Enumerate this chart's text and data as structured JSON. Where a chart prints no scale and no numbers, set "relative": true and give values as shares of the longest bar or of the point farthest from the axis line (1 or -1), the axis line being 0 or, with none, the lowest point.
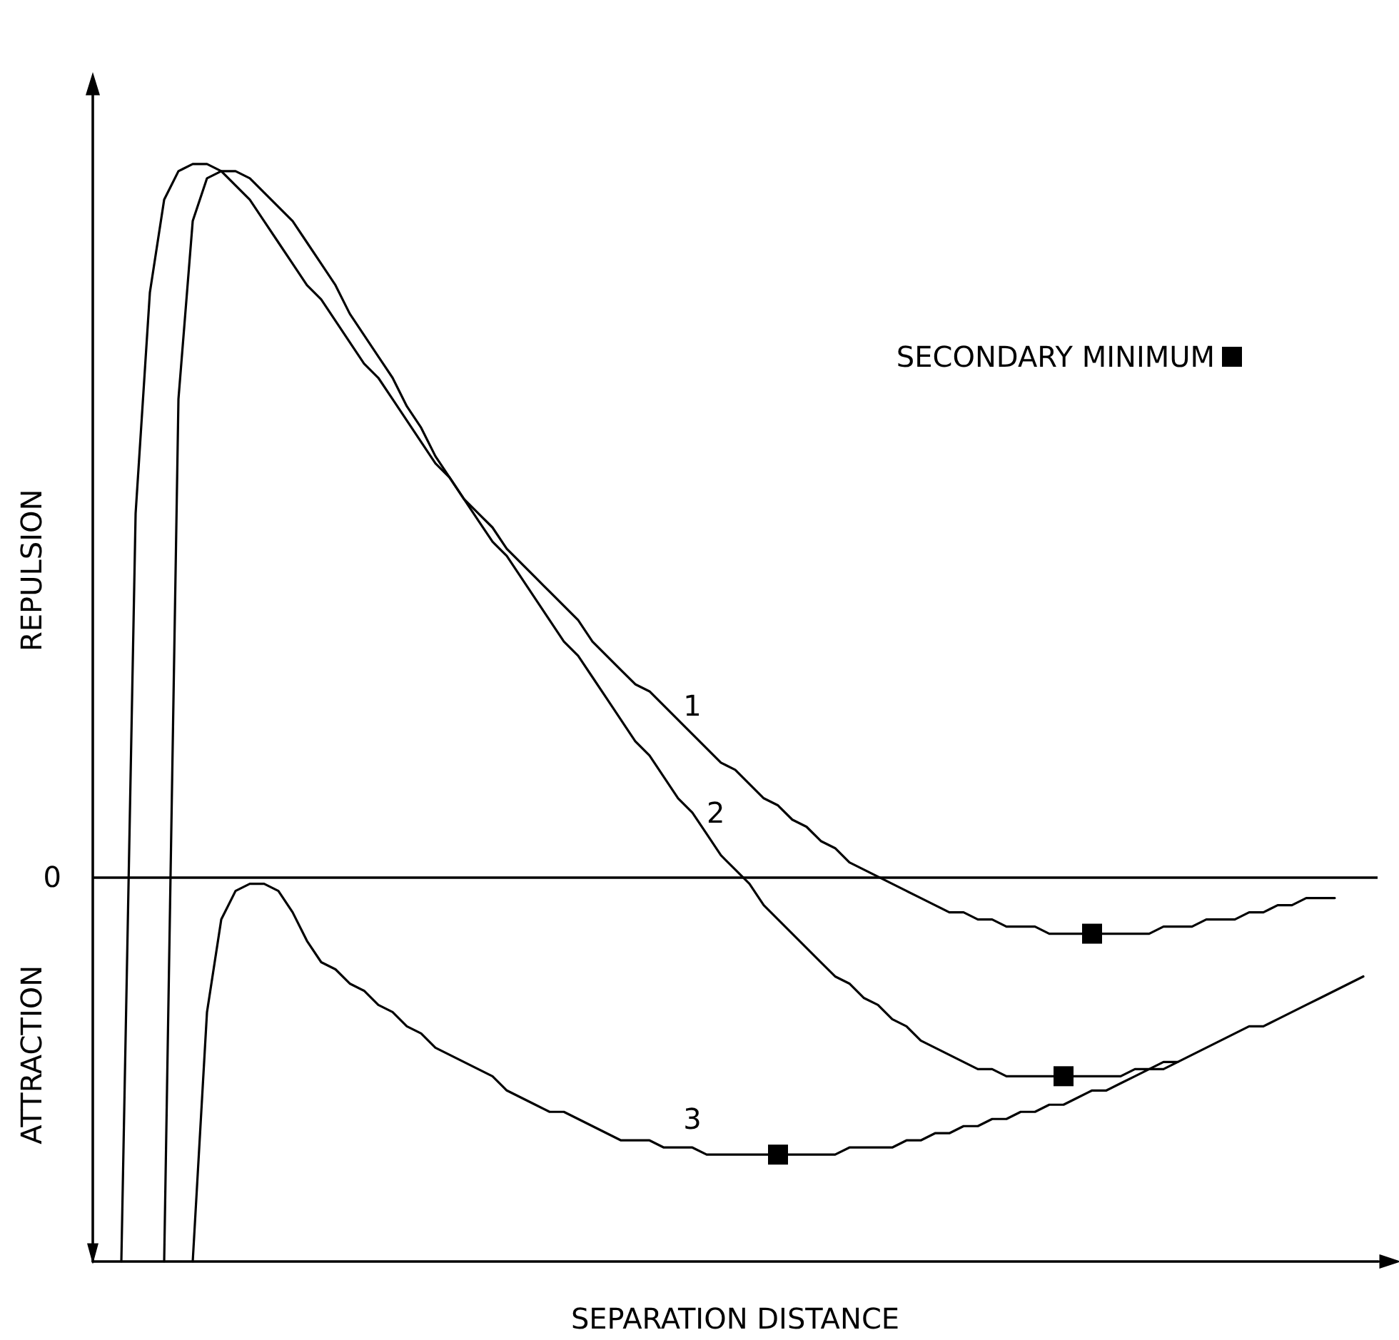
{
  "chart_data": {
    "type": "line",
    "relative": true,
    "xlabel": "SEPARATION DISTANCE",
    "ylabel": "REPULSION",
    "annotations": [
      "ATTRACTION"
    ],
    "ref_lines": [
      {
        "axis": "y",
        "value": 0,
        "label": "0",
        "color": "#000000"
      }
    ],
    "legend": "top right",
    "grid": false,
    "marker": "none",
    "line_style": "solid",
    "categories": [
      null,
      null,
      null,
      null,
      null,
      null,
      null,
      null,
      null,
      null,
      null,
      null,
      null,
      null,
      null,
      null,
      null,
      null,
      null,
      null,
      null,
      null,
      null,
      null,
      null,
      null,
      null,
      null,
      null,
      null,
      null,
      null,
      null,
      null,
      null,
      null,
      null,
      null,
      null,
      null,
      null,
      null,
      null,
      null,
      null,
      null,
      null,
      null,
      null,
      null,
      null,
      null,
      null,
      null,
      null,
      null,
      null,
      null,
      null,
      null,
      null,
      null,
      null,
      null,
      null,
      null,
      null,
      null,
      null,
      null,
      null,
      null,
      null,
      null,
      null,
      null,
      null,
      null,
      null,
      null,
      null,
      null,
      null,
      null,
      null,
      null,
      null,
      null,
      null,
      null,
      null
    ],
    "series": [
      {
        "name": "1",
        "color": "#000000",
        "values": [
          null,
          null,
          -0.54,
          0.51,
          0.82,
          0.95,
          0.99,
          1.0,
          1.0,
          0.99,
          0.97,
          0.95,
          0.92,
          0.89,
          0.86,
          0.83,
          0.81,
          0.78,
          0.75,
          0.72,
          0.7,
          0.67,
          0.64,
          0.61,
          0.58,
          0.56,
          0.53,
          0.51,
          0.49,
          0.46,
          0.44,
          0.42,
          0.4,
          0.38,
          0.36,
          0.33,
          0.31,
          0.29,
          0.27,
          0.26,
          0.24,
          0.22,
          0.2,
          0.18,
          0.16,
          0.15,
          0.13,
          0.11,
          0.1,
          0.08,
          0.07,
          0.05,
          0.04,
          0.02,
          0.01,
          0.0,
          -0.01,
          -0.02,
          -0.03,
          -0.04,
          -0.05,
          -0.05,
          -0.06,
          -0.06,
          -0.07,
          -0.07,
          -0.07,
          -0.08,
          -0.08,
          -0.08,
          -0.08,
          -0.08,
          -0.08,
          -0.08,
          -0.08,
          -0.07,
          -0.07,
          -0.07,
          -0.06,
          -0.06,
          -0.06,
          -0.05,
          -0.05,
          -0.04,
          -0.04,
          -0.03,
          -0.03,
          -0.03,
          null,
          null,
          null
        ]
      },
      {
        "name": "2",
        "color": "#000000",
        "values": [
          null,
          null,
          null,
          null,
          null,
          -0.54,
          0.67,
          0.92,
          0.98,
          0.99,
          0.99,
          0.98,
          0.96,
          0.94,
          0.92,
          0.89,
          0.86,
          0.83,
          0.79,
          0.76,
          0.73,
          0.7,
          0.66,
          0.63,
          0.59,
          0.56,
          0.53,
          0.5,
          0.47,
          0.45,
          0.42,
          0.39,
          0.36,
          0.33,
          0.31,
          0.28,
          0.25,
          0.22,
          0.19,
          0.17,
          0.14,
          0.11,
          0.09,
          0.06,
          0.03,
          0.01,
          -0.01,
          -0.04,
          -0.06,
          -0.08,
          -0.1,
          -0.12,
          -0.14,
          -0.15,
          -0.17,
          -0.18,
          -0.2,
          -0.21,
          -0.23,
          -0.24,
          -0.25,
          -0.26,
          -0.27,
          -0.27,
          -0.28,
          -0.28,
          -0.28,
          -0.28,
          -0.28,
          -0.28,
          -0.28,
          -0.28,
          -0.28,
          -0.27,
          -0.27,
          -0.26,
          -0.26,
          -0.25,
          -0.24,
          -0.23,
          -0.22,
          -0.21,
          -0.21,
          -0.2,
          -0.19,
          -0.18,
          -0.17,
          -0.16,
          -0.15,
          -0.14,
          null
        ]
      },
      {
        "name": "3",
        "color": "#000000",
        "values": [
          null,
          null,
          null,
          null,
          null,
          null,
          null,
          -0.54,
          -0.19,
          -0.06,
          -0.02,
          -0.01,
          -0.01,
          -0.02,
          -0.05,
          -0.09,
          -0.12,
          -0.13,
          -0.15,
          -0.16,
          -0.18,
          -0.19,
          -0.21,
          -0.22,
          -0.24,
          -0.25,
          -0.26,
          -0.27,
          -0.28,
          -0.3,
          -0.31,
          -0.32,
          -0.33,
          -0.33,
          -0.34,
          -0.35,
          -0.36,
          -0.37,
          -0.37,
          -0.37,
          -0.38,
          -0.38,
          -0.38,
          -0.39,
          -0.39,
          -0.39,
          -0.39,
          -0.39,
          -0.39,
          -0.39,
          -0.39,
          -0.39,
          -0.39,
          -0.38,
          -0.38,
          -0.38,
          -0.38,
          -0.37,
          -0.37,
          -0.36,
          -0.36,
          -0.35,
          -0.35,
          -0.34,
          -0.34,
          -0.33,
          -0.33,
          -0.32,
          -0.32,
          -0.31,
          -0.3,
          -0.3,
          -0.29,
          -0.28,
          -0.27,
          -0.27,
          -0.26,
          null,
          null,
          null,
          null,
          null,
          null,
          null,
          null,
          null,
          null,
          null,
          null,
          null,
          null
        ]
      },
      {
        "name": "SECONDARY MINIMUM",
        "type": "line",
        "marker": "square",
        "color": "#000000",
        "values": [
          null,
          null,
          null,
          null,
          null,
          null,
          null,
          null,
          null,
          null,
          null,
          null,
          null,
          null,
          null,
          null,
          null,
          null,
          null,
          null,
          null,
          null,
          null,
          null,
          null,
          null,
          null,
          null,
          null,
          null,
          null,
          null,
          null,
          null,
          null,
          null,
          null,
          null,
          null,
          null,
          null,
          null,
          null,
          null,
          null,
          null,
          null,
          null,
          -0.39,
          null,
          null,
          null,
          null,
          null,
          null,
          null,
          null,
          null,
          null,
          null,
          null,
          null,
          null,
          null,
          null,
          null,
          null,
          null,
          -0.28,
          null,
          -0.08,
          null,
          null,
          null,
          null,
          null,
          null,
          null,
          null,
          null,
          null,
          null,
          null,
          null,
          null,
          null,
          null,
          null,
          null,
          null,
          null
        ]
      }
    ]
  }
}
